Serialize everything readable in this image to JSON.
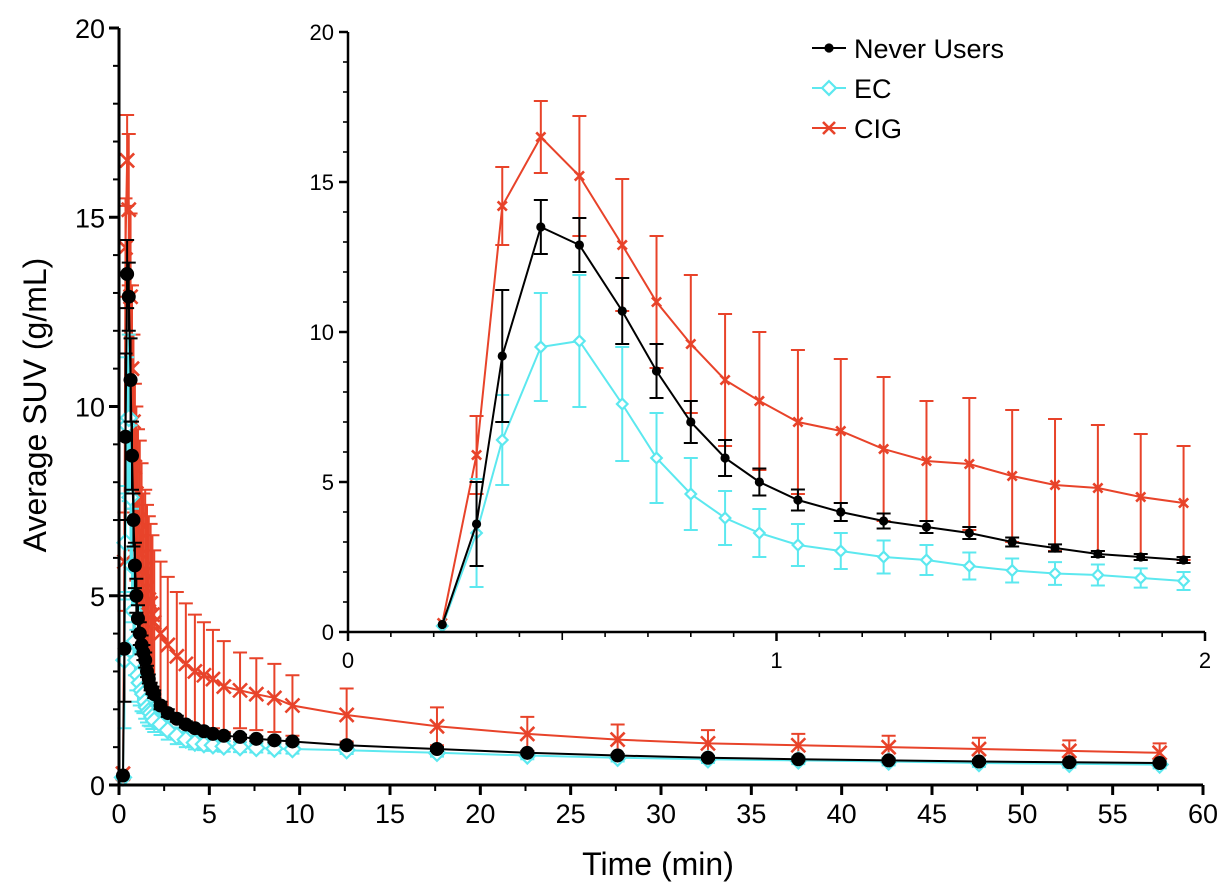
{
  "chart_data": [
    {
      "type": "line",
      "id": "main",
      "xlabel": "Time (min)",
      "ylabel": "Average SUV (g/mL)",
      "xlim": [
        0,
        60
      ],
      "ylim": [
        0,
        20
      ],
      "xticks": [
        0,
        5,
        10,
        15,
        20,
        25,
        30,
        35,
        40,
        45,
        50,
        55,
        60
      ],
      "yticks": [
        0,
        5,
        10,
        15,
        20
      ],
      "grid": false,
      "series": [
        {
          "name": "Never Users",
          "color": "#000000",
          "marker": "dot",
          "x": [
            0.22,
            0.3,
            0.36,
            0.45,
            0.54,
            0.64,
            0.72,
            0.8,
            0.88,
            0.96,
            1.05,
            1.15,
            1.25,
            1.35,
            1.45,
            1.55,
            1.65,
            1.75,
            1.85,
            1.95,
            2.3,
            2.7,
            3.2,
            3.7,
            4.2,
            4.7,
            5.2,
            5.8,
            6.7,
            7.6,
            8.6,
            9.6,
            12.6,
            17.6,
            22.6,
            27.6,
            32.6,
            37.6,
            42.6,
            47.6,
            52.6,
            57.6
          ],
          "y": [
            0.25,
            3.6,
            9.2,
            13.5,
            12.9,
            10.7,
            8.7,
            7.0,
            5.8,
            5.0,
            4.4,
            4.0,
            3.7,
            3.5,
            3.3,
            3.0,
            2.8,
            2.6,
            2.5,
            2.4,
            2.1,
            1.9,
            1.75,
            1.6,
            1.5,
            1.42,
            1.35,
            1.3,
            1.27,
            1.22,
            1.18,
            1.15,
            1.05,
            0.95,
            0.85,
            0.78,
            0.72,
            0.68,
            0.65,
            0.62,
            0.6,
            0.58
          ],
          "err": [
            0,
            1.4,
            2.2,
            0.9,
            0.9,
            1.1,
            0.9,
            0.7,
            0.6,
            0.45,
            0.35,
            0.3,
            0.25,
            0.2,
            0.2,
            0.15,
            0.12,
            0.1,
            0.1,
            0.1,
            0.1,
            0.1,
            0.08,
            0.08,
            0.07,
            0.07,
            0.06,
            0.06,
            0.06,
            0.06,
            0.05,
            0.05,
            0.05,
            0.05,
            0.04,
            0.04,
            0.04,
            0.04,
            0.04,
            0.04,
            0.04,
            0.04
          ]
        },
        {
          "name": "EC",
          "color": "#5ce8ef",
          "marker": "diamond",
          "x": [
            0.22,
            0.3,
            0.36,
            0.45,
            0.54,
            0.64,
            0.72,
            0.8,
            0.88,
            0.96,
            1.05,
            1.15,
            1.25,
            1.35,
            1.45,
            1.55,
            1.65,
            1.75,
            1.85,
            1.95,
            2.3,
            2.7,
            3.2,
            3.7,
            4.2,
            4.7,
            5.2,
            5.8,
            6.7,
            7.6,
            8.6,
            9.6,
            12.6,
            17.6,
            22.6,
            27.6,
            32.6,
            37.6,
            42.6,
            47.6,
            52.6,
            57.6
          ],
          "y": [
            0.2,
            3.3,
            6.4,
            9.5,
            9.7,
            7.6,
            5.8,
            4.6,
            3.8,
            3.3,
            2.9,
            2.7,
            2.5,
            2.4,
            2.2,
            2.05,
            1.95,
            1.9,
            1.8,
            1.7,
            1.6,
            1.45,
            1.3,
            1.2,
            1.12,
            1.08,
            1.05,
            1.02,
            1.0,
            0.98,
            0.96,
            0.95,
            0.92,
            0.85,
            0.78,
            0.72,
            0.68,
            0.65,
            0.62,
            0.58,
            0.56,
            0.54
          ],
          "err": [
            0,
            1.8,
            1.5,
            1.8,
            2.2,
            1.9,
            1.5,
            1.2,
            0.9,
            0.8,
            0.7,
            0.6,
            0.55,
            0.5,
            0.45,
            0.4,
            0.38,
            0.35,
            0.32,
            0.3,
            0.28,
            0.25,
            0.22,
            0.2,
            0.18,
            0.16,
            0.15,
            0.14,
            0.13,
            0.12,
            0.12,
            0.12,
            0.1,
            0.1,
            0.1,
            0.1,
            0.1,
            0.1,
            0.1,
            0.1,
            0.1,
            0.1
          ]
        },
        {
          "name": "CIG",
          "color": "#e8432a",
          "marker": "cross",
          "x": [
            0.22,
            0.3,
            0.36,
            0.45,
            0.54,
            0.64,
            0.72,
            0.8,
            0.88,
            0.96,
            1.05,
            1.15,
            1.25,
            1.35,
            1.45,
            1.55,
            1.65,
            1.75,
            1.85,
            1.95,
            2.3,
            2.7,
            3.2,
            3.7,
            4.2,
            4.7,
            5.2,
            5.8,
            6.7,
            7.6,
            8.6,
            9.6,
            12.6,
            17.6,
            22.6,
            27.6,
            32.6,
            37.6,
            42.6,
            47.6,
            52.6,
            57.6
          ],
          "y": [
            0.3,
            5.9,
            14.2,
            16.5,
            15.2,
            12.9,
            11.0,
            9.6,
            8.4,
            7.7,
            7.0,
            6.7,
            6.1,
            5.7,
            5.6,
            5.2,
            4.9,
            4.8,
            4.5,
            4.3,
            4.0,
            3.7,
            3.4,
            3.2,
            3.0,
            2.9,
            2.8,
            2.6,
            2.5,
            2.4,
            2.3,
            2.1,
            1.85,
            1.55,
            1.35,
            1.2,
            1.1,
            1.05,
            1.0,
            0.95,
            0.9,
            0.85
          ],
          "err": [
            0,
            1.3,
            1.3,
            1.2,
            2.0,
            2.2,
            2.2,
            2.3,
            2.2,
            2.3,
            2.4,
            2.4,
            2.4,
            2.0,
            2.2,
            2.2,
            2.2,
            2.1,
            2.1,
            1.9,
            1.9,
            1.8,
            1.7,
            1.6,
            1.5,
            1.4,
            1.3,
            1.2,
            1.0,
            0.95,
            0.9,
            0.8,
            0.7,
            0.5,
            0.45,
            0.4,
            0.35,
            0.3,
            0.3,
            0.3,
            0.28,
            0.25
          ]
        }
      ]
    },
    {
      "type": "line",
      "id": "inset",
      "xlabel": "",
      "ylabel": "",
      "xlim": [
        0,
        2
      ],
      "ylim": [
        0,
        20
      ],
      "xticks": [
        0,
        1,
        2
      ],
      "yticks": [
        0,
        5,
        10,
        15,
        20
      ],
      "legend": "top-right",
      "legend_entries": [
        "Never Users",
        "EC",
        "CIG"
      ],
      "note": "zoomed view of the first 2 minutes, same three series"
    }
  ]
}
